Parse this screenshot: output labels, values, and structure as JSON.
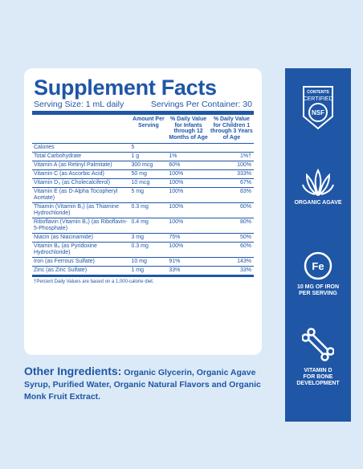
{
  "facts": {
    "title": "Supplement Facts",
    "serving_size": "Serving Size: 1 mL daily",
    "servings_per_container": "Servings Per Container: 30",
    "headers": [
      "",
      "Amount Per Serving",
      "% Daily Value for Infants through 12 Months of Age",
      "% Daily Value for Children 1 through 3 Years of Age"
    ],
    "rows": [
      [
        "Calories",
        "5",
        "",
        ""
      ],
      [
        "Total Carbohydrate",
        "1 g",
        "1%",
        "1%†"
      ],
      [
        "Vitamin A (as Retinyl Palmitate)",
        "300 mcg",
        "60%",
        "100%"
      ],
      [
        "Vitamin C (as Ascorbic Acid)",
        "50 mg",
        "100%",
        "333%"
      ],
      [
        "Vitamin D₃ (as Cholecalciferol)",
        "10 mcg",
        "100%",
        "67%"
      ],
      [
        "Vitamin E (as D-Alpha Tocopheryl Acetate)",
        "5 mg",
        "100%",
        "83%"
      ],
      [
        "Thiamin (Vitamin B₁) (as Thiamine Hydrochloride)",
        "0.3 mg",
        "100%",
        "60%"
      ],
      [
        "Riboflavin (Vitamin B₂) (as Riboflavin-5-Phosphate)",
        "0.4 mg",
        "100%",
        "80%"
      ],
      [
        "Niacin (as Niacinamide)",
        "3 mg",
        "75%",
        "50%"
      ],
      [
        "Vitamin B₆ (as Pyridoxine Hydrochloride)",
        "0.3 mg",
        "100%",
        "60%"
      ],
      [
        "Iron (as Ferrous Sulfate)",
        "10 mg",
        "91%",
        "143%"
      ],
      [
        "Zinc (as Zinc Sulfate)",
        "1 mg",
        "33%",
        "33%"
      ]
    ],
    "footnote": "†Percent Daily Values are based on a 1,000-calorie diet."
  },
  "other_ingredients": {
    "lead": "Other Ingredients:",
    "text": " Organic Glycerin, Organic Agave Syrup, Purified Water, Organic Natural Flavors and Organic Monk Fruit Extract."
  },
  "badges": {
    "nsf_top": "CONTENTS",
    "nsf_mid": "CERTIFIED",
    "nsf_logo": "NSF",
    "agave": "ORGANIC AGAVE",
    "fe_symbol": "Fe",
    "iron_line1": "10 MG OF IRON",
    "iron_line2": "PER SERVING",
    "vitd_line1": "VITAMIN D",
    "vitd_line2": "FOR BONE",
    "vitd_line3": "DEVELOPMENT"
  },
  "colors": {
    "brand_blue": "#1f56a6",
    "background": "#dbeaf6"
  }
}
